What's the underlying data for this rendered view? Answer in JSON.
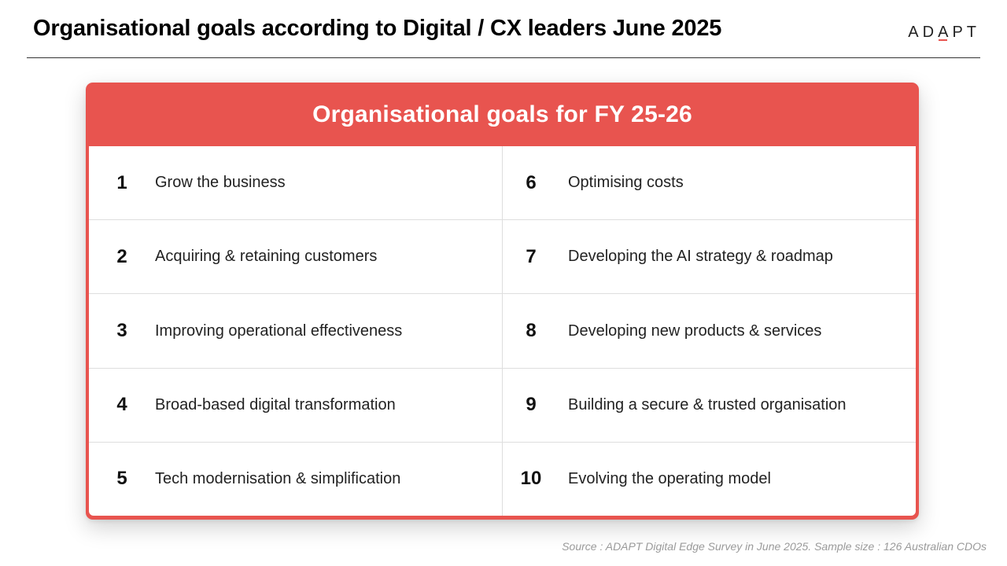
{
  "header": {
    "title": "Organisational goals according to Digital / CX leaders June 2025",
    "logo": {
      "before": "AD",
      "accent": "A",
      "after": "PT",
      "accent_color": "#e8544f"
    }
  },
  "card": {
    "title": "Organisational goals for FY 25-26",
    "header_color": "#e8544f",
    "left_goals": [
      {
        "number": "1",
        "text": "Grow the business"
      },
      {
        "number": "2",
        "text": "Acquiring & retaining customers"
      },
      {
        "number": "3",
        "text": "Improving operational effectiveness"
      },
      {
        "number": "4",
        "text": "Broad-based digital transformation"
      },
      {
        "number": "5",
        "text": "Tech modernisation & simplification"
      }
    ],
    "right_goals": [
      {
        "number": "6",
        "text": "Optimising costs"
      },
      {
        "number": "7",
        "text": "Developing the AI strategy & roadmap"
      },
      {
        "number": "8",
        "text": "Developing new products & services"
      },
      {
        "number": "9",
        "text": "Building a secure & trusted organisation"
      },
      {
        "number": "10",
        "text": "Evolving the operating model"
      }
    ]
  },
  "footer": {
    "source": "Source : ADAPT Digital Edge Survey in June 2025. Sample size : 126 Australian CDOs"
  }
}
